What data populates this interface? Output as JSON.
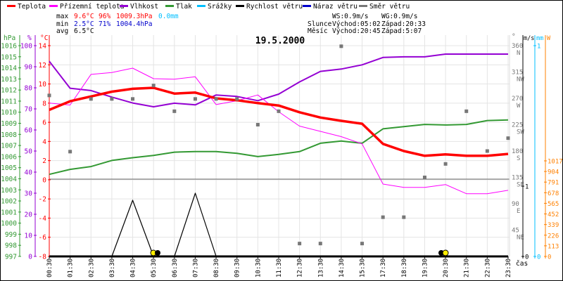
{
  "chart_data": {
    "type": "line",
    "title": "19.5.2000",
    "legend": [
      {
        "name": "Teplota",
        "color": "#ff0000"
      },
      {
        "name": "Přízemní teplota",
        "color": "#ff00ff"
      },
      {
        "name": "Vlhkost",
        "color": "#9400d3"
      },
      {
        "name": "Tlak",
        "color": "#339933"
      },
      {
        "name": "Srážky",
        "color": "#00bfff"
      },
      {
        "name": "Rychlost větru",
        "color": "#000000"
      },
      {
        "name": "Náraz větru",
        "color": "#0000cc"
      },
      {
        "name": "Směr větru",
        "color": "#777777"
      }
    ],
    "stats": {
      "max": {
        "label": "max",
        "temp": "9.6°C",
        "hum": "96%",
        "press": "1009.3hPa",
        "rain": "0.0mm"
      },
      "min": {
        "label": "min",
        "temp": "2.5°C",
        "hum": "71%",
        "press": "1004.4hPa"
      },
      "avg": {
        "label": "avg",
        "temp": "6.5°C"
      },
      "ws": "WS:0.9m/s",
      "wg": "WG:0.9m/s",
      "sun": {
        "label": "Slunce",
        "rise": "Východ:05:02",
        "set": "Západ:20:33"
      },
      "moon": {
        "label": "Měsíc",
        "rise": "Východ:20:45",
        "set": "Západ:5:07"
      }
    },
    "x": [
      "00:30",
      "01:30",
      "02:30",
      "03:30",
      "04:30",
      "05:30",
      "06:30",
      "07:30",
      "08:30",
      "09:30",
      "10:30",
      "11:30",
      "12:30",
      "13:30",
      "14:30",
      "15:30",
      "17:30",
      "18:30",
      "19:30",
      "20:30",
      "21:30",
      "22:30",
      "23:30"
    ],
    "xlabel": "čas",
    "axes": {
      "pressure": {
        "unit": "hPa",
        "range": [
          997,
          1016
        ],
        "ticks": [
          997,
          998,
          999,
          1000,
          1001,
          1002,
          1003,
          1004,
          1005,
          1006,
          1007,
          1008,
          1009,
          1010,
          1011,
          1012,
          1013,
          1014,
          1015,
          1016
        ]
      },
      "humidity": {
        "unit": "%",
        "range": [
          0,
          100
        ],
        "ticks": [
          0,
          10,
          20,
          30,
          40,
          50,
          60,
          70,
          80,
          90,
          100
        ]
      },
      "temperature": {
        "unit": "°C",
        "range": [
          -8,
          14
        ],
        "ticks": [
          -8,
          -6,
          -4,
          -2,
          0,
          2,
          4,
          6,
          8,
          10,
          12,
          14
        ]
      },
      "direction": {
        "unit": "°",
        "range": [
          0,
          360
        ],
        "ticks": [
          {
            "v": 45,
            "c": "NE"
          },
          {
            "v": 90,
            "c": "E"
          },
          {
            "v": 135,
            "c": "SE"
          },
          {
            "v": 180,
            "c": "S"
          },
          {
            "v": 225,
            "c": "SW"
          },
          {
            "v": 270,
            "c": "W"
          },
          {
            "v": 315,
            "c": "NW"
          },
          {
            "v": 360,
            "c": "N"
          }
        ]
      },
      "wind": {
        "unit": "m/s",
        "range": [
          0,
          3
        ],
        "ticks": [
          0,
          1
        ]
      },
      "rain": {
        "unit": "mm",
        "range": [
          0,
          1
        ],
        "ticks": [
          0,
          1
        ]
      },
      "radiation": {
        "unit": "W",
        "range": [
          0,
          2243
        ],
        "ticks": [
          0,
          113,
          226,
          339,
          452,
          565,
          678,
          791,
          904,
          1017
        ]
      }
    },
    "grid": true,
    "series": [
      {
        "name": "Teplota",
        "axis": "temperature",
        "values": [
          7.3,
          8.2,
          8.7,
          9.2,
          9.5,
          9.6,
          9.0,
          9.1,
          8.5,
          8.3,
          8.0,
          7.75,
          7.05,
          6.5,
          6.15,
          5.85,
          3.75,
          3.0,
          2.5,
          2.65,
          2.5,
          2.5,
          2.7
        ]
      },
      {
        "name": "Přízemní teplota",
        "axis": "temperature",
        "values": [
          8.0,
          7.8,
          11.0,
          11.2,
          11.65,
          10.55,
          10.5,
          10.75,
          7.85,
          8.25,
          8.85,
          7.1,
          5.6,
          5.05,
          4.5,
          3.75,
          -0.45,
          -0.8,
          -0.8,
          -0.5,
          -1.45,
          -1.45,
          -1.1
        ]
      },
      {
        "name": "Vlhkost",
        "axis": "humidity",
        "values": [
          92.6,
          79.8,
          78.7,
          75.6,
          72.8,
          71,
          72.7,
          71.9,
          76.6,
          75.9,
          73.9,
          77,
          82.8,
          87.8,
          88.9,
          90.9,
          94.4,
          94.7,
          94.7,
          96,
          96,
          96,
          96
        ]
      },
      {
        "name": "Tlak",
        "axis": "pressure",
        "values": [
          1004.4,
          1004.85,
          1005.1,
          1005.65,
          1005.9,
          1006.1,
          1006.4,
          1006.45,
          1006.45,
          1006.3,
          1006.0,
          1006.2,
          1006.45,
          1007.2,
          1007.4,
          1007.2,
          1008.5,
          1008.7,
          1008.9,
          1008.85,
          1008.9,
          1009.25,
          1009.3
        ]
      },
      {
        "name": "Srážky",
        "axis": "rain",
        "values": [
          0,
          0,
          0,
          0,
          0,
          0,
          0,
          0,
          0,
          0,
          0,
          0,
          0,
          0,
          0,
          0,
          0,
          0,
          0,
          0,
          0,
          0,
          0
        ]
      },
      {
        "name": "Rychlost větru",
        "axis": "wind",
        "values": [
          0,
          0,
          0,
          0,
          0.8,
          0,
          0,
          0.9,
          0,
          0,
          0,
          0,
          0,
          0,
          0,
          0,
          0,
          0,
          0,
          0,
          0,
          0,
          0
        ]
      },
      {
        "name": "Směr větru",
        "axis": "direction",
        "values": [
          275,
          179,
          269,
          269,
          269,
          292,
          248,
          269,
          269,
          269,
          225,
          248,
          22,
          22,
          359,
          22,
          67,
          67,
          135,
          158,
          248,
          180,
          202
        ]
      }
    ]
  }
}
